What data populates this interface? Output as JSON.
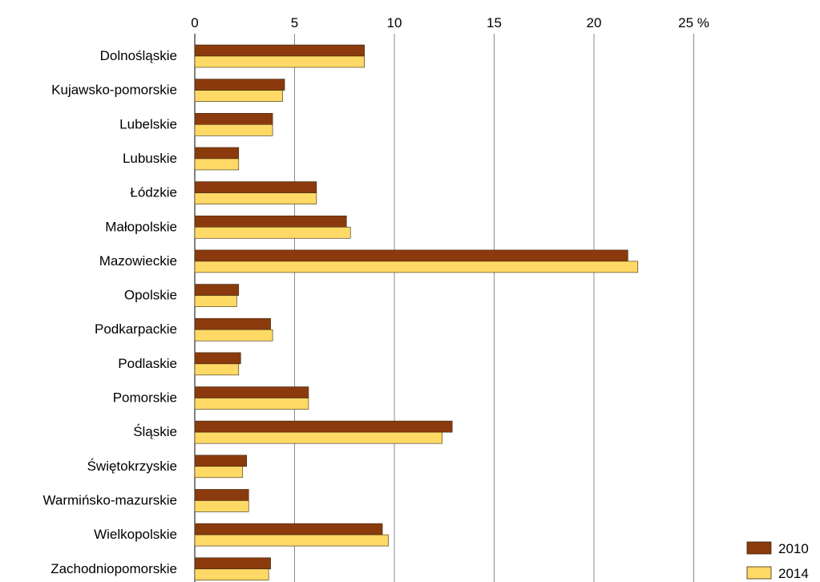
{
  "chart_data": {
    "type": "bar",
    "orientation": "horizontal",
    "title": "",
    "xlabel": "",
    "ylabel": "",
    "xlim": [
      0,
      25
    ],
    "unit": "%",
    "x_ticks": [
      "0",
      "5",
      "10",
      "15",
      "20",
      "25 %"
    ],
    "grid": true,
    "legend_position": "bottom-right",
    "categories": [
      "Dolnośląskie",
      "Kujawsko-pomorskie",
      "Lubelskie",
      "Lubuskie",
      "Łódzkie",
      "Małopolskie",
      "Mazowieckie",
      "Opolskie",
      "Podkarpackie",
      "Podlaskie",
      "Pomorskie",
      "Śląskie",
      "Świętokrzyskie",
      "Warmińsko-mazurskie",
      "Wielkopolskie",
      "Zachodniopomorskie"
    ],
    "series": [
      {
        "name": "2010",
        "color": "#8B3A0E",
        "values": [
          8.5,
          4.5,
          3.9,
          2.2,
          6.1,
          7.6,
          21.7,
          2.2,
          3.8,
          2.3,
          5.7,
          12.9,
          2.6,
          2.7,
          9.4,
          3.8
        ]
      },
      {
        "name": "2014",
        "color": "#FFD966",
        "values": [
          8.5,
          4.4,
          3.9,
          2.2,
          6.1,
          7.8,
          22.2,
          2.1,
          3.9,
          2.2,
          5.7,
          12.4,
          2.4,
          2.7,
          9.7,
          3.7
        ]
      }
    ]
  }
}
